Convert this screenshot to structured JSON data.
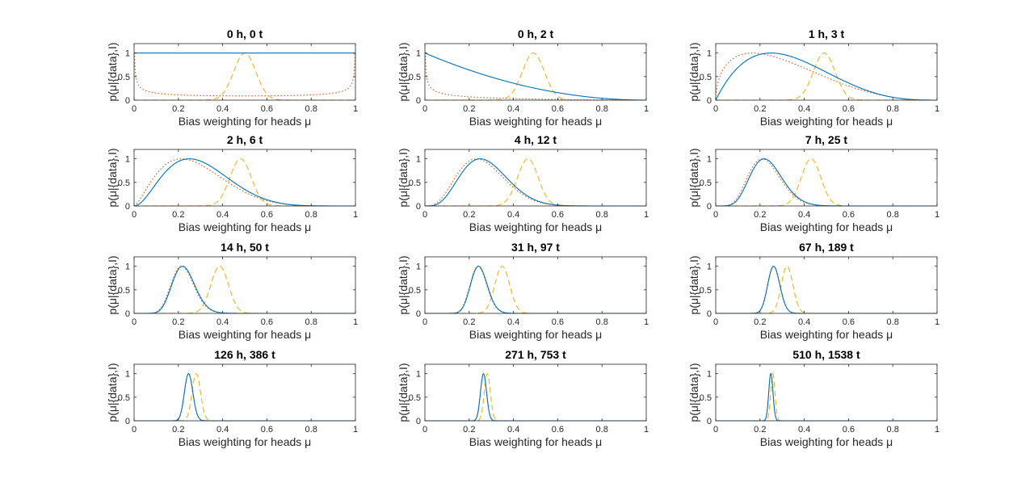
{
  "chart_data": {
    "type": "line",
    "layout": "4x3 grid of subplots",
    "xlabel": "Bias weighting for heads μ",
    "ylabel": "p(μ|{data},I)",
    "xlim": [
      0,
      1
    ],
    "ylim": [
      0,
      1.2
    ],
    "xticks": [
      "0",
      "0.2",
      "0.4",
      "0.6",
      "0.8",
      "1"
    ],
    "yticks": [
      "0",
      "0.5",
      "1"
    ],
    "series_styles": [
      {
        "key": "uniform",
        "color": "#0072BD",
        "style": "solid"
      },
      {
        "key": "gaussian",
        "color": "#EDB120",
        "style": "dashed"
      },
      {
        "key": "jeffreys",
        "color": "#D95319",
        "style": "dotted"
      }
    ],
    "panels": [
      {
        "title": "0 h, 0 t",
        "heads": 0,
        "tails": 0
      },
      {
        "title": "0 h, 2 t",
        "heads": 0,
        "tails": 2
      },
      {
        "title": "1 h, 3 t",
        "heads": 1,
        "tails": 3
      },
      {
        "title": "2 h, 6 t",
        "heads": 2,
        "tails": 6
      },
      {
        "title": "4 h, 12 t",
        "heads": 4,
        "tails": 12
      },
      {
        "title": "7 h, 25 t",
        "heads": 7,
        "tails": 25
      },
      {
        "title": "14 h, 50 t",
        "heads": 14,
        "tails": 50
      },
      {
        "title": "31 h, 97 t",
        "heads": 31,
        "tails": 97
      },
      {
        "title": "67 h, 189 t",
        "heads": 67,
        "tails": 189
      },
      {
        "title": "126 h, 386 t",
        "heads": 126,
        "tails": 386
      },
      {
        "title": "271 h, 753 t",
        "heads": 271,
        "tails": 753
      },
      {
        "title": "510 h, 1538 t",
        "heads": 510,
        "tails": 1538
      }
    ],
    "gaussian_prior": {
      "mean": 0.5,
      "sd": 0.05
    }
  }
}
